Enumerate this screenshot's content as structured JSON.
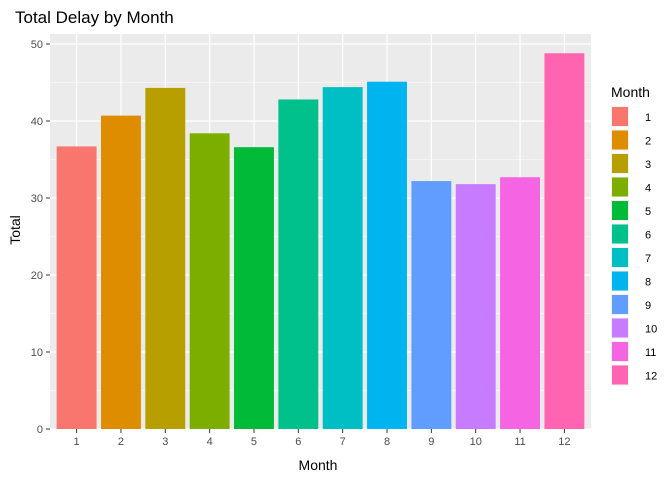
{
  "chart_data": {
    "type": "bar",
    "title": "Total Delay by Month",
    "xlabel": "Month",
    "ylabel": "Total",
    "categories": [
      "1",
      "2",
      "3",
      "4",
      "5",
      "6",
      "7",
      "8",
      "9",
      "10",
      "11",
      "12"
    ],
    "values": [
      36.7,
      40.7,
      44.3,
      38.4,
      36.6,
      42.8,
      44.4,
      45.1,
      32.2,
      31.8,
      32.7,
      48.8
    ],
    "colors": [
      "#F8766D",
      "#DE8C00",
      "#B79F00",
      "#7CAE00",
      "#00BA38",
      "#00C08B",
      "#00BFC4",
      "#00B4F0",
      "#619CFF",
      "#C77CFF",
      "#F564E3",
      "#FF64B0"
    ],
    "ylim": [
      0,
      51.3
    ],
    "yticks": [
      0,
      10,
      20,
      30,
      40,
      50
    ],
    "grid": true,
    "panel_background": "#EBEBEB",
    "legend": {
      "title": "Month",
      "position": "right",
      "entries": [
        "1",
        "2",
        "3",
        "4",
        "5",
        "6",
        "7",
        "8",
        "9",
        "10",
        "11",
        "12"
      ]
    }
  }
}
